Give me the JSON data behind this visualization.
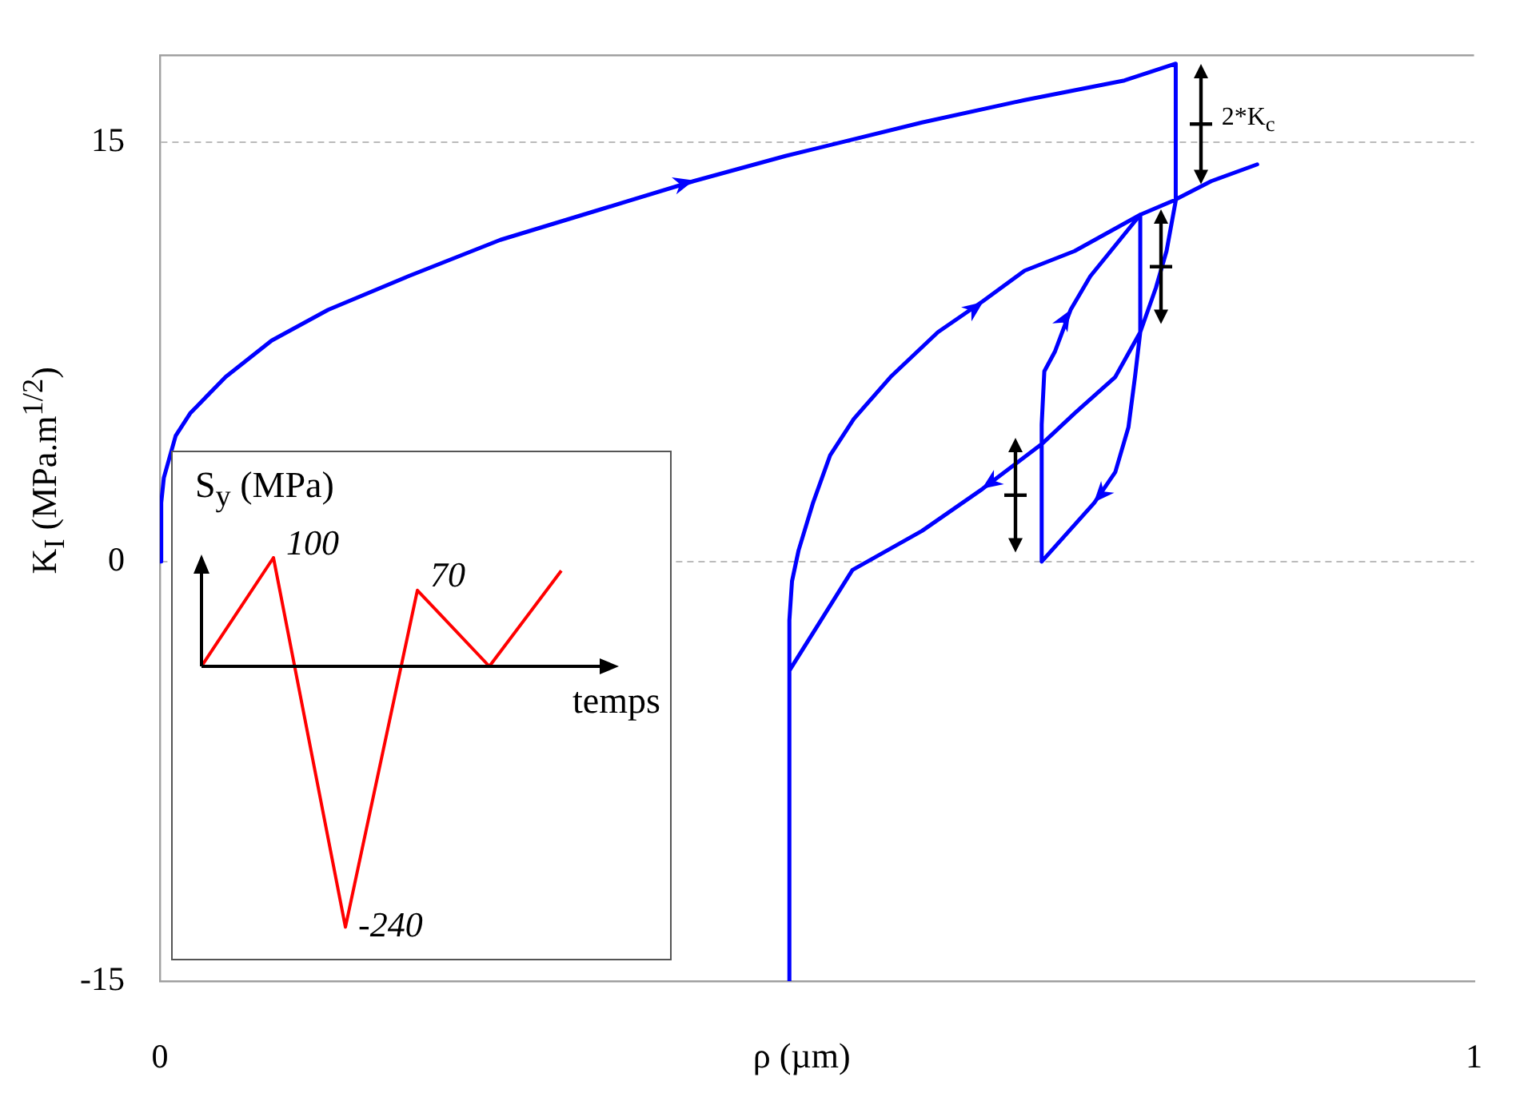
{
  "chart_data": [
    {
      "type": "line",
      "xlabel": "ρ (µm)",
      "ylabel": "K$_{I}$ (MPa.m$^{1/2}$)",
      "annotations": [
        "2*K$_{c}$"
      ],
      "xlim": [
        0,
        1
      ],
      "xticks": [
        0,
        1
      ],
      "ylim": [
        -15,
        18.1
      ],
      "yticks": [
        -15,
        0,
        15
      ],
      "grid": "y",
      "legend": false,
      "marker": "none",
      "line_style": "solid",
      "series": [
        {
          "color": "#0000ff",
          "x": [
            0,
            0.001,
            0.003,
            0.012,
            0.023,
            0.05,
            0.085,
            0.128,
            0.189,
            0.259,
            0.336,
            0.406,
            0.476,
            0.58,
            0.658,
            0.734,
            0.773,
            0.773,
            0.766,
            0.758,
            0.746,
            0.742,
            0.737,
            0.727,
            0.711,
            0.671,
            0.671,
            0.673,
            0.681,
            0.693,
            0.708,
            0.727,
            0.746,
            0.746,
            0.727,
            0.696,
            0.671,
            0.626,
            0.58,
            0.527,
            0.479,
            0.479,
            0.479,
            0.481,
            0.486,
            0.497,
            0.51,
            0.528,
            0.556,
            0.592,
            0.626,
            0.658,
            0.696,
            0.746,
            0.771,
            0.8,
            0.835
          ],
          "values": [
            0,
            2.1,
            3.0,
            4.5,
            5.3,
            6.6,
            7.9,
            9.0,
            10.2,
            11.5,
            12.6,
            13.6,
            14.5,
            15.7,
            16.5,
            17.2,
            17.8,
            12.9,
            11.1,
            9.8,
            8.2,
            6.6,
            4.8,
            3.2,
            2.1,
            0,
            4.9,
            6.8,
            7.5,
            9.0,
            10.2,
            11.3,
            12.4,
            8.2,
            6.6,
            5.3,
            4.2,
            2.6,
            1.1,
            -0.3,
            -3.9,
            -15,
            -2.1,
            -0.7,
            0.4,
            2.1,
            3.8,
            5.1,
            6.6,
            8.2,
            9.3,
            10.4,
            11.1,
            12.4,
            12.9,
            13.6,
            14.2
          ]
        }
      ]
    },
    {
      "type": "line",
      "xlabel": "temps",
      "ylabel": "S$_{y}$ (MPa)",
      "categories": [
        null,
        null,
        null,
        null,
        null,
        null
      ],
      "values": [
        0,
        100,
        -240,
        70,
        0,
        88
      ],
      "value_labels": [
        null,
        "100",
        "-240",
        "70",
        null,
        null
      ],
      "color": "#ff0000",
      "tick_labels": false,
      "legend": false,
      "marker": "none"
    }
  ]
}
